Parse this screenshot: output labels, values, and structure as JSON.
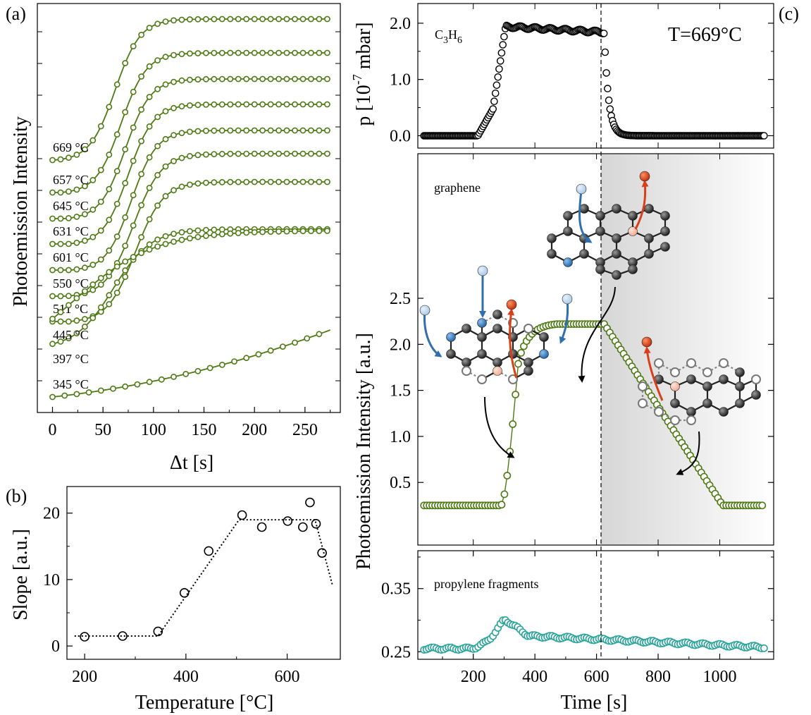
{
  "panel_labels": {
    "a": "(a)",
    "b": "(b)",
    "c": "(c)"
  },
  "colors": {
    "olive": "#4e7a14",
    "teal": "#2aa39a",
    "black": "#000000",
    "blue": "#2f6fb0",
    "red": "#d8401a"
  },
  "chart_data": [
    {
      "id": "a",
      "type": "line",
      "xlabel": "Δt [s]",
      "ylabel": "Photoemission Intensity",
      "xlim": [
        -15,
        285
      ],
      "xticks": [
        "0",
        "50",
        "100",
        "150",
        "200",
        "250"
      ],
      "xtick_values": [
        0,
        50,
        100,
        150,
        200,
        250
      ],
      "series": [
        {
          "name": "669 °C",
          "onset": 62,
          "tau": 20,
          "base": 0,
          "amp": 1.0
        },
        {
          "name": "657 °C",
          "onset": 68,
          "tau": 20,
          "base": 0,
          "amp": 1.0
        },
        {
          "name": "645 °C",
          "onset": 72,
          "tau": 20,
          "base": 0,
          "amp": 1.0
        },
        {
          "name": "631 °C",
          "onset": 75,
          "tau": 20,
          "base": 0,
          "amp": 1.0
        },
        {
          "name": "601 °C",
          "onset": 78,
          "tau": 20,
          "base": 0,
          "amp": 1.0
        },
        {
          "name": "550 °C",
          "onset": 80,
          "tau": 22,
          "base": 0,
          "amp": 1.0
        },
        {
          "name": "511 °C",
          "onset": 82,
          "tau": 22,
          "base": 0,
          "amp": 1.0
        },
        {
          "name": "445 °C",
          "onset": 60,
          "tau": 30,
          "base": 0,
          "amp": 1.0
        },
        {
          "name": "397 °C",
          "onset": 20,
          "tau": 65,
          "base": 0,
          "amp": 1.0
        },
        {
          "name": "345 °C",
          "onset": 0,
          "tau": 120,
          "base": 0,
          "amp": 1.0
        }
      ]
    },
    {
      "id": "b",
      "type": "scatter",
      "xlabel": "Temperature [°C]",
      "ylabel": "Slope [a.u.]",
      "xlim": [
        165,
        705
      ],
      "ylim": [
        -2,
        24
      ],
      "xticks": [
        "200",
        "400",
        "600"
      ],
      "xtick_values": [
        200,
        400,
        600
      ],
      "yticks": [
        "0",
        "10",
        "20"
      ],
      "ytick_values": [
        0,
        10,
        20
      ],
      "points": [
        [
          200,
          1.4
        ],
        [
          275,
          1.5
        ],
        [
          345,
          2.2
        ],
        [
          397,
          8.0
        ],
        [
          445,
          14.3
        ],
        [
          511,
          19.7
        ],
        [
          550,
          17.9
        ],
        [
          601,
          18.8
        ],
        [
          631,
          17.9
        ],
        [
          645,
          21.6
        ],
        [
          657,
          18.4
        ],
        [
          669,
          14.0
        ]
      ],
      "fit": [
        [
          180,
          1.5
        ],
        [
          345,
          1.5
        ],
        [
          505,
          19.0
        ],
        [
          655,
          19.0
        ],
        [
          690,
          9.0
        ]
      ]
    },
    {
      "id": "c-top",
      "type": "line",
      "ylabel": "p [10^-7 mbar]",
      "species": "C3H6",
      "temperature": "T=669°C",
      "xlim": [
        20,
        1175
      ],
      "ylim": [
        -0.22,
        2.35
      ],
      "yticks": [
        "0.0",
        "1.0",
        "2.0"
      ],
      "ytick_values": [
        0,
        1,
        2
      ],
      "x_start": 40,
      "x_end": 1145,
      "rise_start": 215,
      "rise_end": 305,
      "fall": 625,
      "plateau_start": 1.94,
      "plateau_end": 1.84,
      "vline_x": 623
    },
    {
      "id": "c-mid",
      "type": "line",
      "label": "graphene",
      "ylabel": "Photoemission Intensity [a.u.]",
      "xlim": [
        20,
        1175
      ],
      "ylim": [
        -0.18,
        4.07
      ],
      "yticks": [
        "0.5",
        "1.0",
        "1.5",
        "2.0",
        "2.5"
      ],
      "ytick_values": [
        0.5,
        1.0,
        1.5,
        2.0,
        2.5
      ],
      "x_start": 40,
      "x_end": 1145,
      "baseline": 0.25,
      "peak": 2.22,
      "rise_start": 290,
      "rise_mid": 345,
      "plateau_from": 470,
      "decay_start": 625,
      "decay_end": 1010
    },
    {
      "id": "c-bot",
      "type": "line",
      "label": "propylene fragments",
      "xlabel": "Time [s]",
      "xlim": [
        20,
        1175
      ],
      "ylim": [
        0.238,
        0.41
      ],
      "xticks": [
        "200",
        "400",
        "600",
        "800",
        "1000"
      ],
      "xtick_values": [
        200,
        400,
        600,
        800,
        1000
      ],
      "yticks": [
        "0.25",
        "0.35"
      ],
      "ytick_values": [
        0.25,
        0.35
      ],
      "baseline": 0.255,
      "peak": 0.302,
      "peak_x": 300
    }
  ]
}
